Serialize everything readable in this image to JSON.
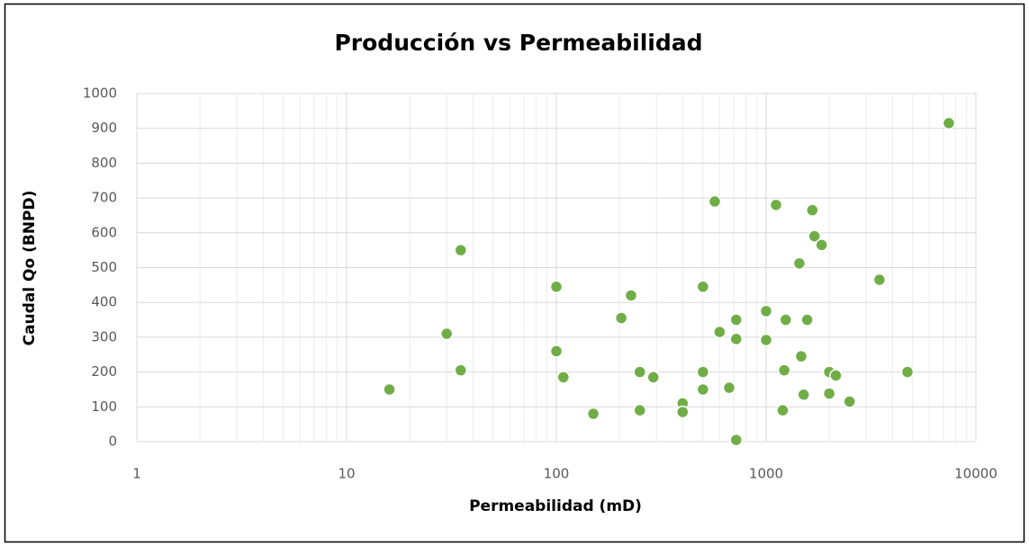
{
  "chart_data": {
    "type": "scatter",
    "title": "Producción vs Permeabilidad",
    "x_label": "Permeabilidad (mD)",
    "y_label": "Caudal Qo (BNPD)",
    "x_scale": "log",
    "grid": true,
    "color": "#70ad47",
    "xlim": [
      1,
      10000
    ],
    "xticks": [
      1,
      10,
      100,
      1000,
      10000
    ],
    "ylim": [
      0,
      1000
    ],
    "yticks": [
      0,
      100,
      200,
      300,
      400,
      500,
      600,
      700,
      800,
      900,
      1000
    ],
    "x": [
      16,
      30,
      35,
      35,
      100,
      100,
      108,
      204,
      227,
      150,
      250,
      250,
      290,
      400,
      400,
      500,
      500,
      500,
      569,
      600,
      667,
      720,
      720,
      720,
      1000,
      1000,
      1115,
      1220,
      1200,
      1240,
      1440,
      1470,
      1510,
      1570,
      1660,
      1700,
      1840,
      2000,
      2000,
      2150,
      2500,
      3470,
      4720,
      7430
    ],
    "values": [
      150,
      310,
      550,
      205,
      445,
      260,
      185,
      355,
      420,
      80,
      90,
      200,
      185,
      110,
      85,
      150,
      200,
      445,
      690,
      315,
      155,
      350,
      295,
      5,
      375,
      292,
      680,
      205,
      90,
      350,
      512,
      245,
      135,
      350,
      665,
      590,
      565,
      200,
      138,
      190,
      115,
      465,
      200,
      915
    ]
  }
}
